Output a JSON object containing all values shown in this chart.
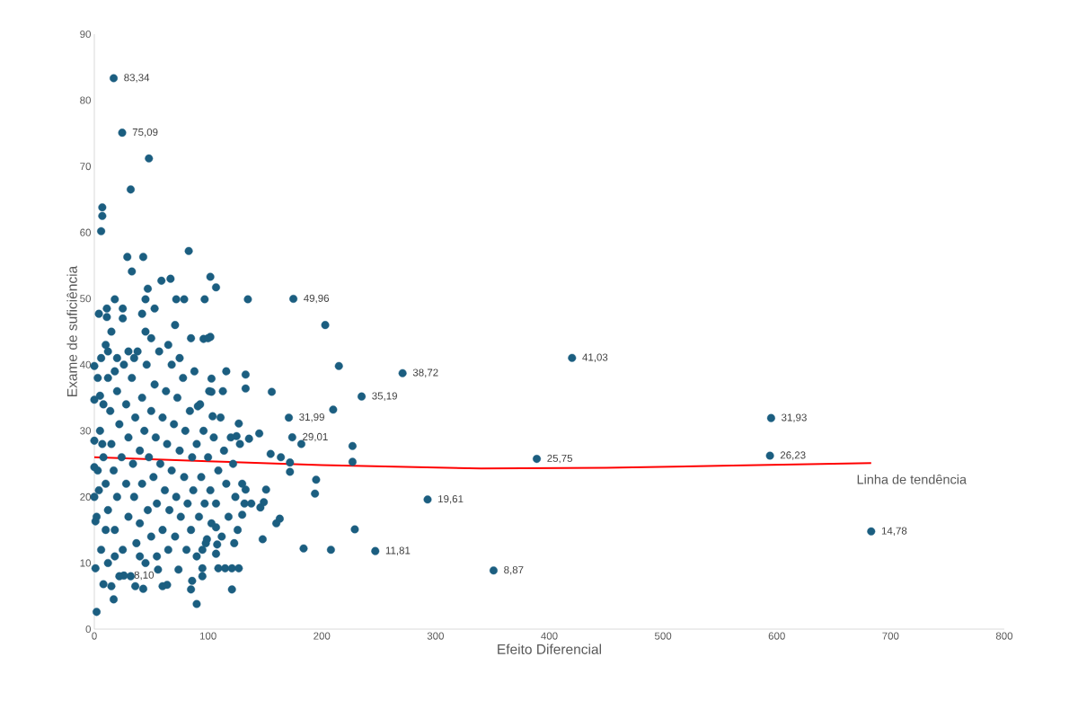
{
  "chart_data": {
    "type": "scatter",
    "xlabel": "Efeito Diferencial",
    "ylabel": "Exame de suficiência",
    "xlim": [
      0,
      800
    ],
    "ylim": [
      0,
      90
    ],
    "xticks": [
      0,
      100,
      200,
      300,
      400,
      500,
      600,
      700,
      800
    ],
    "yticks": [
      0,
      10,
      20,
      30,
      40,
      50,
      60,
      70,
      80,
      90
    ],
    "marker": "circle",
    "annotations": [
      "Linha de tendência"
    ],
    "series": [
      {
        "color": "#1b5e80",
        "x": [
          17,
          24.5,
          175,
          420,
          271,
          235,
          171,
          174,
          389,
          293,
          247,
          351,
          595,
          594,
          683,
          26
        ],
        "values": [
          83.34,
          75.09,
          49.96,
          41.03,
          38.72,
          35.19,
          31.99,
          29.01,
          25.75,
          19.61,
          11.81,
          8.87,
          31.93,
          26.23,
          14.78,
          8.1
        ],
        "value_labels": [
          "83,34",
          "75,09",
          "49,96",
          "41,03",
          "38,72",
          "35,19",
          "31,99",
          "29,01",
          "25,75",
          "19,61",
          "11,81",
          "8,87",
          "31,93",
          "26,23",
          "14,78",
          "8,10"
        ]
      },
      {
        "color": "#1b5e80",
        "x": [
          48,
          32,
          7,
          7,
          6,
          83,
          29,
          43,
          33,
          59,
          67,
          102,
          107,
          47,
          4,
          11,
          11,
          18,
          25,
          45,
          53,
          72,
          79,
          97,
          135,
          42,
          71,
          203,
          215,
          210,
          102,
          96,
          133,
          133,
          156,
          116,
          113,
          103,
          103,
          104,
          91,
          127,
          125,
          136,
          145,
          155,
          164,
          172,
          172,
          182,
          227,
          227,
          195,
          194,
          163,
          160,
          148,
          146,
          149,
          151,
          138,
          133,
          130,
          123,
          107,
          108,
          107,
          109,
          115,
          121,
          127,
          121,
          229,
          184,
          208,
          90,
          85,
          86,
          95,
          95,
          99,
          64,
          43,
          17,
          2,
          8,
          1,
          1,
          0,
          0,
          0,
          0,
          0,
          5,
          5,
          8,
          10,
          12,
          14,
          15,
          17,
          18,
          20,
          20,
          22,
          24,
          25,
          26,
          28,
          28,
          30,
          30,
          32,
          33,
          34,
          35,
          36,
          37,
          38,
          40,
          40,
          42,
          42,
          44,
          45,
          46,
          47,
          48,
          50,
          50,
          52,
          53,
          54,
          55,
          56,
          57,
          58,
          60,
          60,
          62,
          63,
          64,
          65,
          66,
          68,
          68,
          70,
          71,
          72,
          73,
          74,
          75,
          76,
          78,
          79,
          80,
          81,
          82,
          84,
          85,
          86,
          87,
          88,
          90,
          90,
          92,
          93,
          94,
          95,
          96,
          97,
          98,
          100,
          101,
          102,
          103,
          105,
          107,
          109,
          111,
          112,
          114,
          116,
          118,
          120,
          122,
          124,
          126,
          128,
          130,
          132,
          10,
          12,
          6,
          3,
          15,
          20,
          25,
          8,
          3,
          6,
          12,
          15,
          22,
          18,
          2,
          4,
          7,
          10,
          36,
          40,
          55,
          60,
          45,
          50,
          65,
          75,
          85,
          100,
          12,
          18,
          30,
          35
        ],
        "values": [
          71.2,
          66.5,
          63.8,
          62.5,
          60.2,
          57.2,
          56.3,
          56.3,
          54.1,
          52.7,
          53,
          53.3,
          51.7,
          51.5,
          47.7,
          48.5,
          47.2,
          49.9,
          48.5,
          49.9,
          48.5,
          49.9,
          49.9,
          49.9,
          49.9,
          47.7,
          46,
          46,
          39.8,
          33.2,
          44.2,
          43.9,
          38.5,
          36.4,
          35.9,
          39,
          36,
          37.9,
          35.9,
          32.2,
          33.7,
          31.1,
          29.2,
          28.8,
          29.6,
          26.5,
          26,
          25.2,
          23.8,
          28,
          27.7,
          25.3,
          22.6,
          20.5,
          16.7,
          16,
          13.6,
          18.4,
          19.2,
          21.1,
          19,
          21.1,
          17.3,
          13,
          15.4,
          12.8,
          11.4,
          9.2,
          9.2,
          9.2,
          9.2,
          6,
          15.1,
          12.2,
          12,
          3.8,
          6,
          7.3,
          9.2,
          12,
          13.6,
          6.7,
          6.1,
          4.5,
          2.6,
          6.8,
          9.2,
          16.3,
          20,
          24.5,
          28.5,
          34.7,
          39.8,
          35.3,
          30,
          26,
          22,
          18,
          33,
          28,
          24,
          15,
          36,
          20,
          31,
          26,
          12,
          40,
          22,
          34,
          17,
          29,
          8,
          38,
          25,
          20,
          32,
          13,
          42,
          27,
          16,
          35,
          22,
          30,
          10,
          40,
          18,
          26,
          33,
          14,
          23,
          37,
          29,
          19,
          9,
          42,
          25,
          32,
          15,
          21,
          36,
          28,
          12,
          18,
          24,
          40,
          31,
          14,
          20,
          35,
          9,
          27,
          17,
          38,
          23,
          30,
          12,
          19,
          33,
          15,
          26,
          21,
          39,
          28,
          11,
          17,
          34,
          23,
          8,
          30,
          19,
          13,
          26,
          36,
          21,
          16,
          29,
          19,
          24,
          32,
          14,
          27,
          22,
          17,
          29,
          25,
          20,
          15,
          28,
          22,
          19,
          43,
          42,
          41,
          38,
          45,
          41,
          47,
          34,
          24,
          12,
          10,
          6.5,
          8,
          11,
          17,
          21,
          28,
          15,
          6.5,
          11,
          11,
          6.5,
          45,
          44,
          43,
          41,
          44,
          44,
          38,
          39,
          42,
          41
        ]
      },
      {
        "type": "line",
        "marker": "none",
        "color": "#ff0000",
        "x": [
          0,
          100,
          200,
          340,
          450,
          550,
          683
        ],
        "values": [
          26.0,
          25.4,
          24.8,
          24.3,
          24.4,
          24.7,
          25.1
        ]
      }
    ]
  }
}
